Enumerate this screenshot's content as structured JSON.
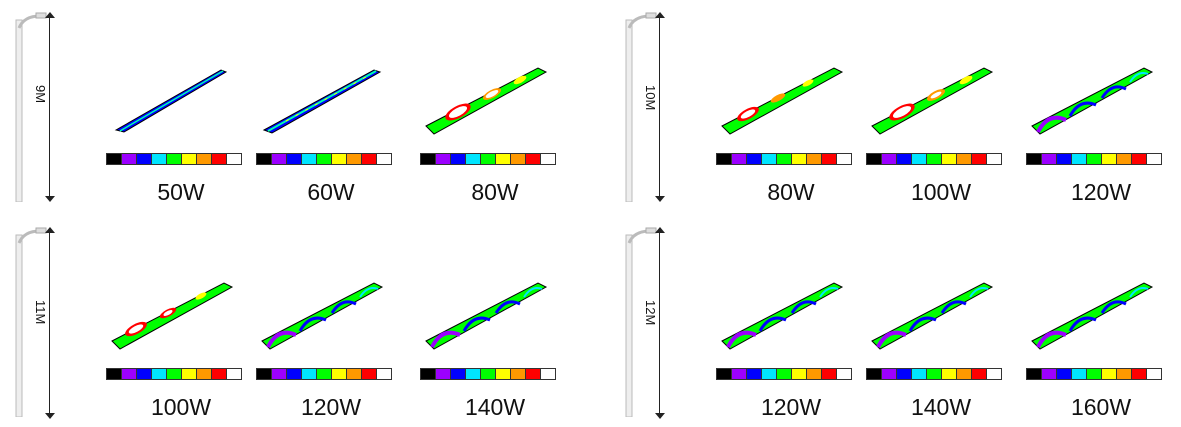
{
  "legend_colors": [
    "#000000",
    "#9b00ff",
    "#0000ff",
    "#00e5ff",
    "#00ff00",
    "#ffff00",
    "#ff9900",
    "#ff0000",
    "#ffffff"
  ],
  "groups": [
    {
      "height": "9M",
      "watts": [
        "50W",
        "60W",
        "80W"
      ]
    },
    {
      "height": "10M",
      "watts": [
        "80W",
        "100W",
        "120W"
      ]
    },
    {
      "height": "11M",
      "watts": [
        "100W",
        "120W",
        "140W"
      ]
    },
    {
      "height": "12M",
      "watts": [
        "120W",
        "140W",
        "160W"
      ]
    }
  ]
}
